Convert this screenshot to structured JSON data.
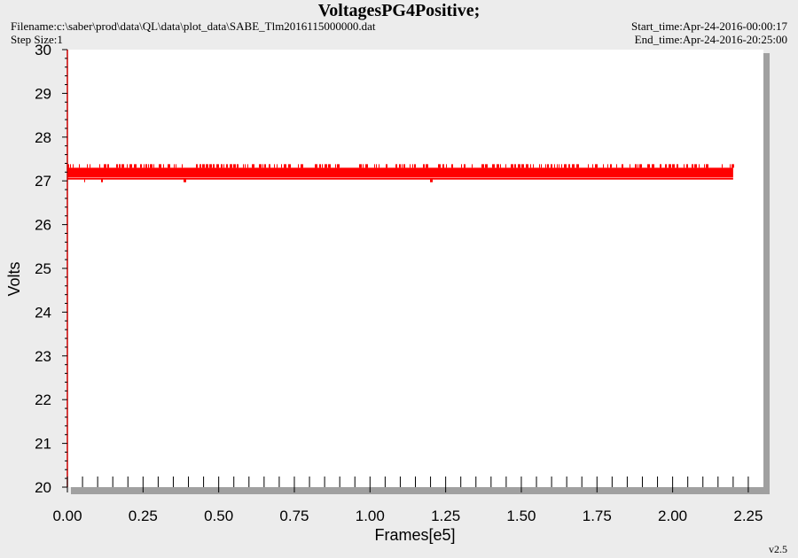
{
  "header": {
    "title": "VoltagesPG4Positive;",
    "filename": "Filename:c:\\saber\\prod\\data\\QL\\data\\plot_data\\SABE_Tlm2016115000000.dat",
    "step_size": "Step Size:1",
    "start_time": "Start_time:Apr-24-2016-00:00:17",
    "end_time": "End_time:Apr-24-2016-20:25:00"
  },
  "footer": {
    "version": "v2.5"
  },
  "colors": {
    "series": "#ff0000",
    "plot_bg": "#ffffff",
    "frame_shadow": "#a0a0a0",
    "page_bg": "#ececec"
  },
  "chart_data": {
    "type": "line",
    "xlabel": "Frames[e5]",
    "ylabel": "Volts",
    "xlim": [
      0,
      2.3
    ],
    "ylim": [
      20,
      30
    ],
    "x_ticks": [
      "0.00",
      "0.25",
      "0.50",
      "0.75",
      "1.00",
      "1.25",
      "1.50",
      "1.75",
      "2.00",
      "2.25"
    ],
    "y_ticks": [
      "20",
      "21",
      "22",
      "23",
      "24",
      "25",
      "26",
      "27",
      "28",
      "29",
      "30"
    ],
    "grid": false,
    "series": [
      {
        "x_range": [
          0,
          2.2
        ],
        "baseline": 27.1,
        "upper": 27.3,
        "lower": 27.05
      }
    ]
  }
}
